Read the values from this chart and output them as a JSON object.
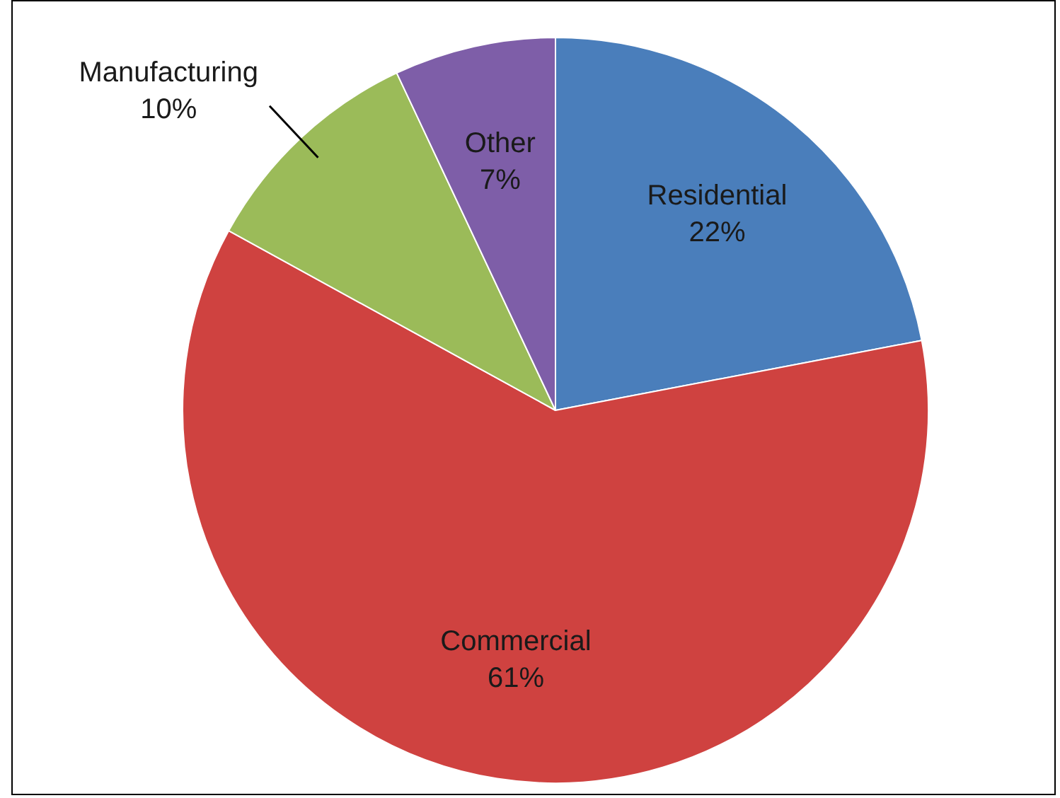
{
  "chart_data": {
    "type": "pie",
    "categories": [
      "Residential",
      "Commercial",
      "Manufacturing",
      "Other"
    ],
    "values": [
      22,
      61,
      10,
      7
    ],
    "colors": [
      "#4a7ebb",
      "#cf4240",
      "#9bbb59",
      "#7e5ea8"
    ],
    "value_labels": [
      "22%",
      "61%",
      "10%",
      "7%"
    ],
    "legend": false
  }
}
